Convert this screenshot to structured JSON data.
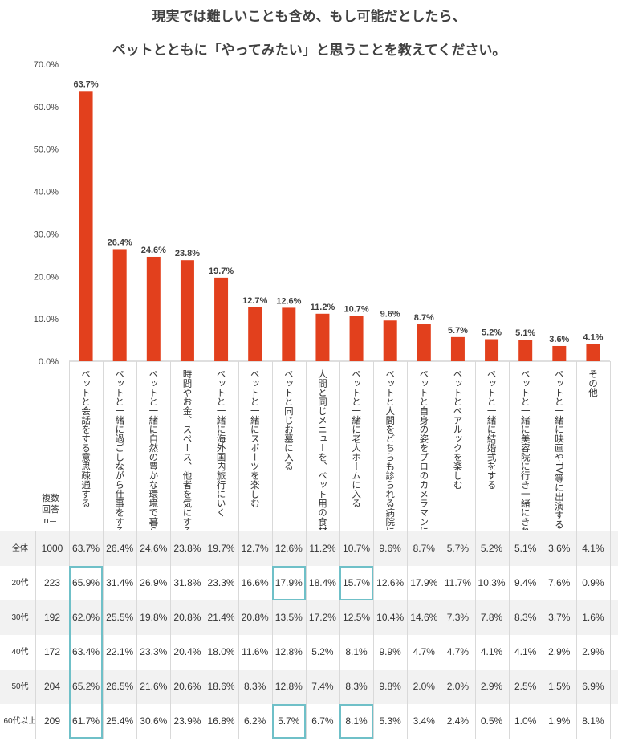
{
  "title_line1": "現実では難しいことも含め、もし可能だとしたら、",
  "title_line2": "ペットとともに「やってみたい」と思うことを教えてください。",
  "chart_data": {
    "type": "bar",
    "color": "#e2401d",
    "ylim": [
      0,
      70
    ],
    "yticks": [
      "0.0%",
      "10.0%",
      "20.0%",
      "30.0%",
      "40.0%",
      "50.0%",
      "60.0%",
      "70.0%"
    ],
    "categories": [
      "ペットと会話をする意思疎通する",
      "ペットと一緒に過ごしながら仕事をする",
      "ペットと一緒に自然の豊かな環境で暮らす",
      "時間やお金、スペース、他者を気にすることなく、自由に遊ぶ走り回る",
      "ペットと一緒に海外国内旅行にいく",
      "ペットと一緒にスポーツを楽しむ",
      "ペットと同じお墓に入る",
      "人間と同じメニューを、ペット用の食材で用意し一緒に食事を楽しむ",
      "ペットと一緒に老人ホームに入る",
      "ペットと人間をどちらも診られる病院に行く",
      "ペットと自身の姿をプロのカメラマンに撮影してもらう",
      "ペットとペアルックを楽しむ",
      "ペットと一緒に結婚式をする",
      "ペットと一緒に美容院に行き一緒にきれいにしてもらう",
      "ペットと一緒に映画やTV等に出演する",
      "その他"
    ],
    "values": [
      63.7,
      26.4,
      24.6,
      23.8,
      19.7,
      12.7,
      12.6,
      11.2,
      10.7,
      9.6,
      8.7,
      5.7,
      5.2,
      5.1,
      3.6,
      4.1
    ],
    "data_labels": [
      "63.7%",
      "26.4%",
      "24.6%",
      "23.8%",
      "19.7%",
      "12.7%",
      "12.6%",
      "11.2%",
      "10.7%",
      "9.6%",
      "8.7%",
      "5.7%",
      "5.2%",
      "5.1%",
      "3.6%",
      "4.1%"
    ]
  },
  "n_label": "複数\n回答\nn＝",
  "table": {
    "highlight_color": "#6fc0c8",
    "rows": [
      {
        "label": "全体",
        "n": "1000",
        "values": [
          "63.7%",
          "26.4%",
          "24.6%",
          "23.8%",
          "19.7%",
          "12.7%",
          "12.6%",
          "11.2%",
          "10.7%",
          "9.6%",
          "8.7%",
          "5.7%",
          "5.2%",
          "5.1%",
          "3.6%",
          "4.1%"
        ]
      },
      {
        "label": "20代",
        "n": "223",
        "values": [
          "65.9%",
          "31.4%",
          "26.9%",
          "31.8%",
          "23.3%",
          "16.6%",
          "17.9%",
          "18.4%",
          "15.7%",
          "12.6%",
          "17.9%",
          "11.7%",
          "10.3%",
          "9.4%",
          "7.6%",
          "0.9%"
        ]
      },
      {
        "label": "30代",
        "n": "192",
        "values": [
          "62.0%",
          "25.5%",
          "19.8%",
          "20.8%",
          "21.4%",
          "20.8%",
          "13.5%",
          "17.2%",
          "12.5%",
          "10.4%",
          "14.6%",
          "7.3%",
          "7.8%",
          "8.3%",
          "3.7%",
          "1.6%"
        ]
      },
      {
        "label": "40代",
        "n": "172",
        "values": [
          "63.4%",
          "22.1%",
          "23.3%",
          "20.4%",
          "18.0%",
          "11.6%",
          "12.8%",
          "5.2%",
          "8.1%",
          "9.9%",
          "4.7%",
          "4.7%",
          "4.1%",
          "4.1%",
          "2.9%",
          "2.9%"
        ]
      },
      {
        "label": "50代",
        "n": "204",
        "values": [
          "65.2%",
          "26.5%",
          "21.6%",
          "20.6%",
          "18.6%",
          "8.3%",
          "12.8%",
          "7.4%",
          "8.3%",
          "9.8%",
          "2.0%",
          "2.0%",
          "2.9%",
          "2.5%",
          "1.5%",
          "6.9%"
        ]
      },
      {
        "label": "60代以上",
        "n": "209",
        "values": [
          "61.7%",
          "25.4%",
          "30.6%",
          "23.9%",
          "16.8%",
          "6.2%",
          "5.7%",
          "6.7%",
          "8.1%",
          "5.3%",
          "3.4%",
          "2.4%",
          "0.5%",
          "1.0%",
          "1.9%",
          "8.1%"
        ]
      }
    ]
  }
}
